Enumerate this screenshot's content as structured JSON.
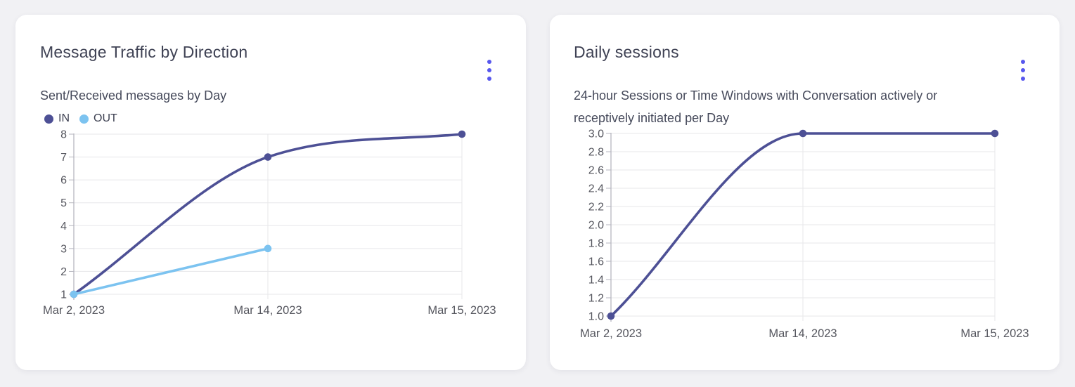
{
  "page": {
    "background_color": "#f1f1f4",
    "card_color": "#ffffff"
  },
  "colors": {
    "accent_menu": "#5757ee",
    "series_in": "#4d5095",
    "series_out": "#7cc3f0",
    "grid": "#e7e7ea",
    "axis": "#b6b6bf",
    "axis_text": "#55565e",
    "title_text": "#3f4254"
  },
  "cards": [
    {
      "title": "Message Traffic by Direction",
      "subtitle": "Sent/Received messages by Day",
      "menu_icon": "kebab-vertical",
      "legend": [
        {
          "label": "IN",
          "color": "#4d5095"
        },
        {
          "label": "OUT",
          "color": "#7cc3f0"
        }
      ]
    },
    {
      "title": "Daily sessions",
      "subtitle_line1": "24-hour Sessions or Time Windows with Conversation actively or",
      "subtitle_line2": "receptively initiated per Day",
      "menu_icon": "kebab-vertical"
    }
  ],
  "chart_data": [
    {
      "type": "line",
      "title": "Message Traffic by Direction",
      "subtitle": "Sent/Received messages by Day",
      "categories": [
        "Mar 2, 2023",
        "Mar 14, 2023",
        "Mar 15, 2023"
      ],
      "series": [
        {
          "name": "IN",
          "color": "#4d5095",
          "values": [
            1,
            7,
            8
          ]
        },
        {
          "name": "OUT",
          "color": "#7cc3f0",
          "values": [
            1,
            3,
            null
          ]
        }
      ],
      "ylim": [
        1,
        8
      ],
      "ytick_values": [
        8,
        7,
        6,
        5,
        4,
        3,
        2,
        1
      ],
      "ytick_labels": [
        "8",
        "7",
        "6",
        "5",
        "4",
        "3",
        "2",
        "1"
      ],
      "grid": true,
      "curve": "monotone",
      "legend_position": "top-left"
    },
    {
      "type": "line",
      "title": "Daily sessions",
      "subtitle": "24-hour Sessions or Time Windows with Conversation actively or receptively initiated per Day",
      "categories": [
        "Mar 2, 2023",
        "Mar 14, 2023",
        "Mar 15, 2023"
      ],
      "series": [
        {
          "name": "Daily sessions",
          "color": "#4d5095",
          "values": [
            1.0,
            3.0,
            3.0
          ]
        }
      ],
      "ylim": [
        1.0,
        3.0
      ],
      "ytick_values": [
        3.0,
        2.8,
        2.6,
        2.4,
        2.2,
        2.0,
        1.8,
        1.6,
        1.4,
        1.2,
        1.0
      ],
      "ytick_labels": [
        "3.0",
        "2.8",
        "2.6",
        "2.4",
        "2.2",
        "2.0",
        "1.8",
        "1.6",
        "1.4",
        "1.2",
        "1.0"
      ],
      "grid": true,
      "curve": "monotone",
      "legend_position": "none"
    }
  ]
}
